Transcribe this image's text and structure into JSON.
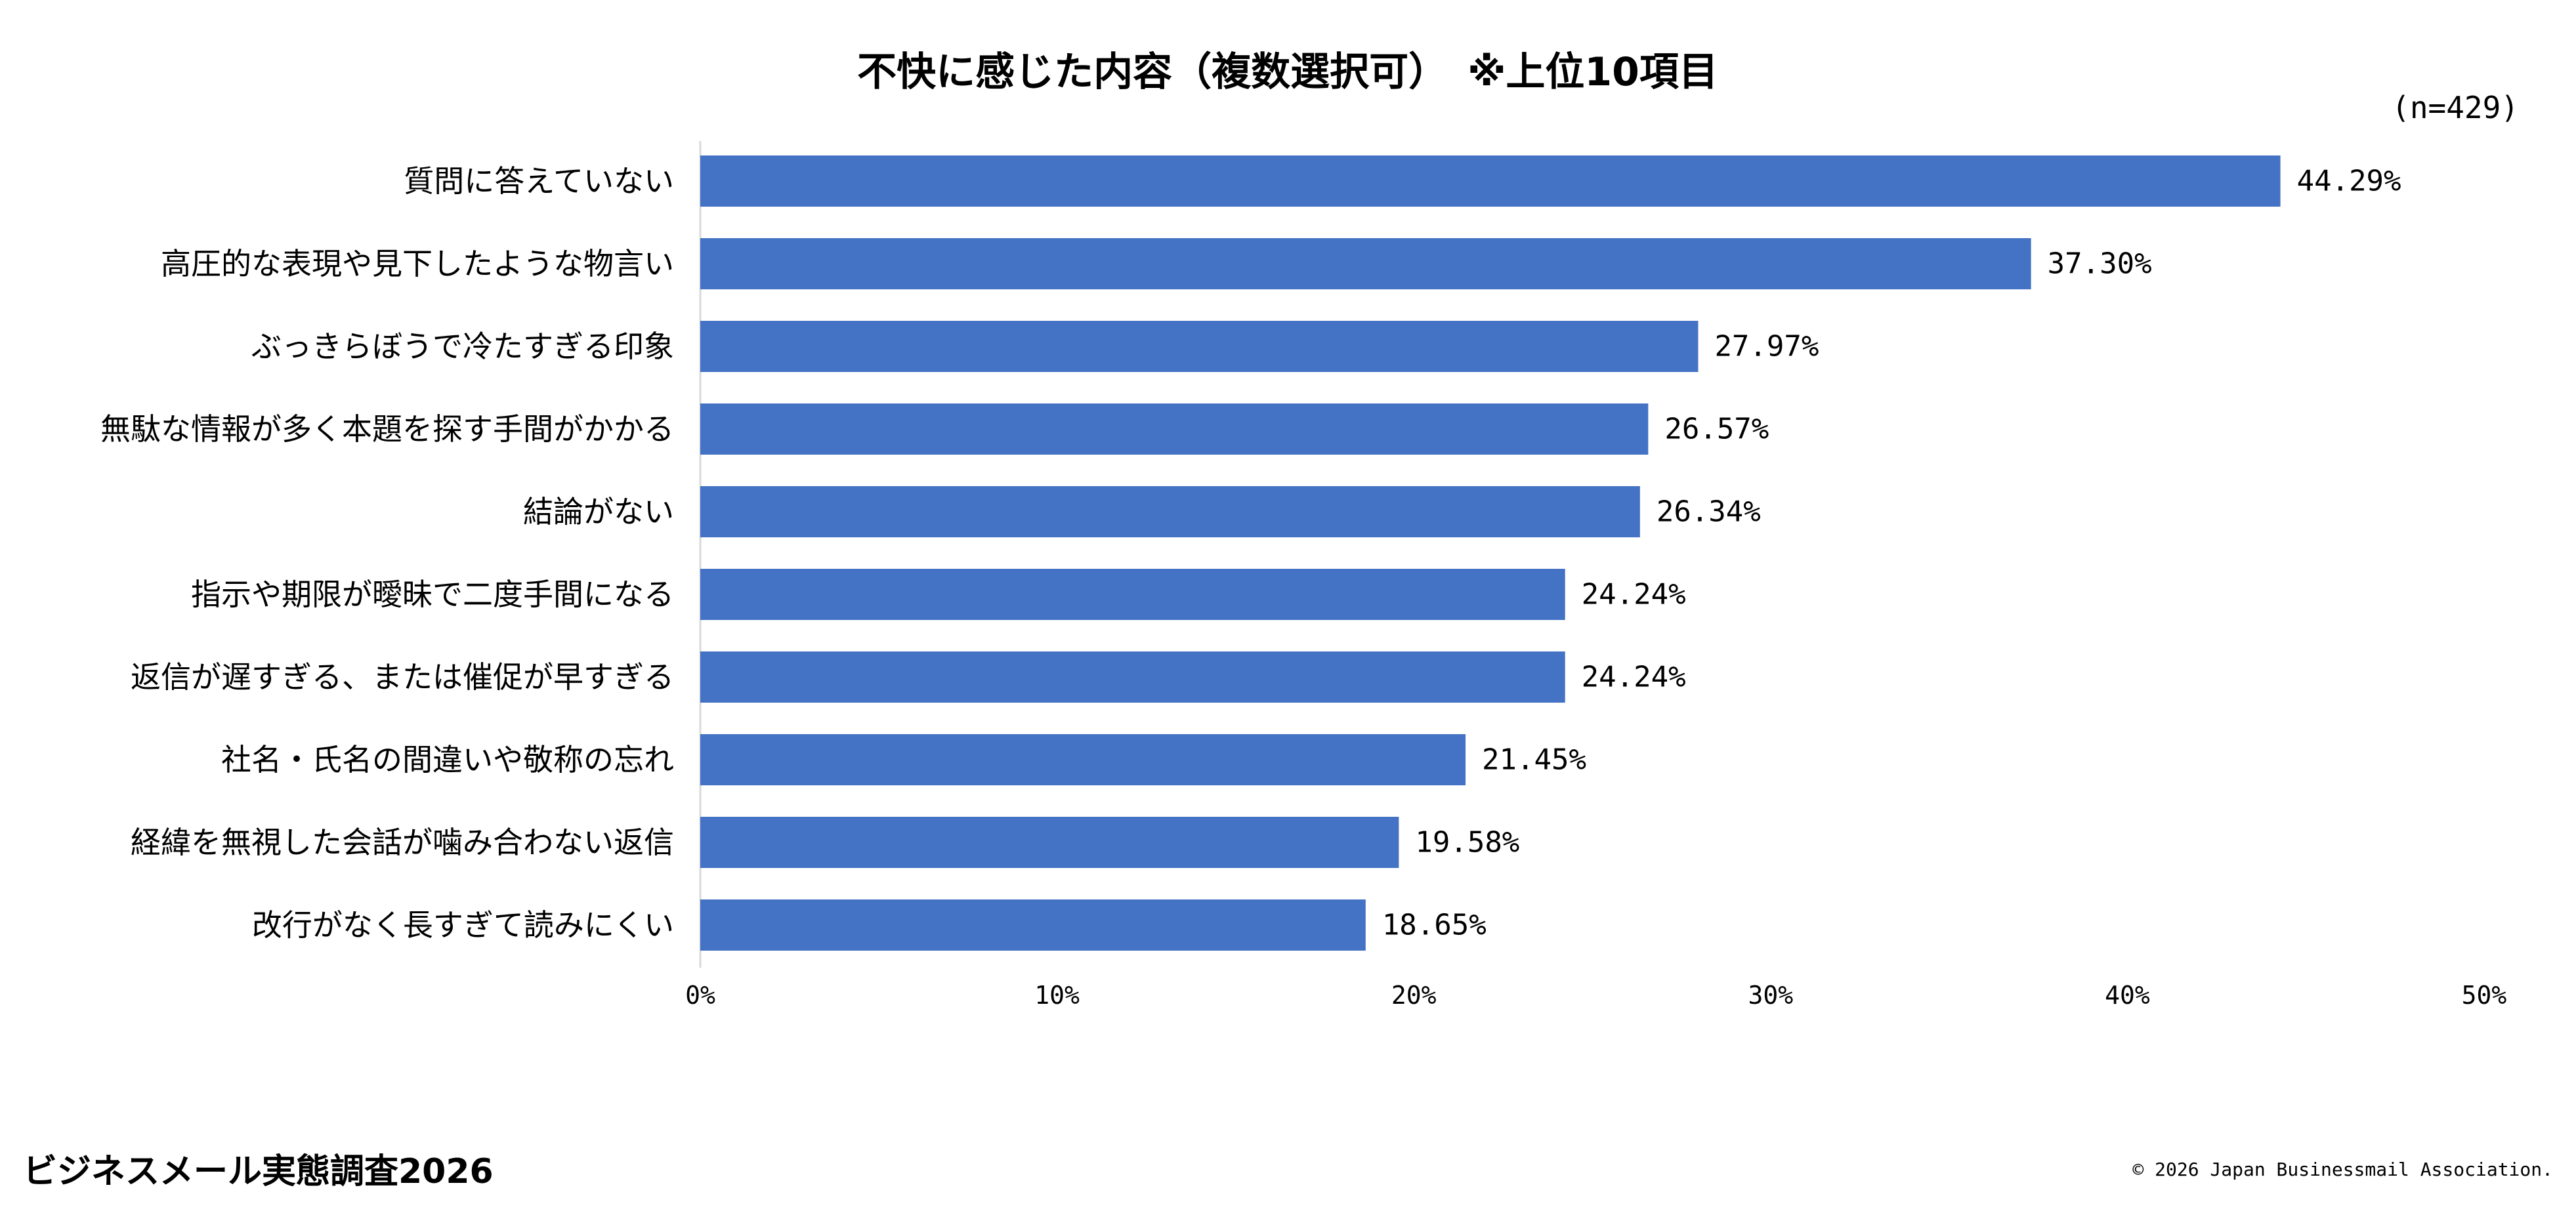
{
  "chart_data": {
    "type": "bar",
    "orientation": "horizontal",
    "title": "不快に感じた内容（複数選択可）　※上位10項目",
    "sample_note": "(n=429)",
    "categories": [
      "質問に答えていない",
      "高圧的な表現や見下したような物言い",
      "ぶっきらぼうで冷たすぎる印象",
      "無駄な情報が多く本題を探す手間がかかる",
      "結論がない",
      "指示や期限が曖昧で二度手間になる",
      "返信が遅すぎる、または催促が早すぎる",
      "社名・氏名の間違いや敬称の忘れ",
      "経緯を無視した会話が噛み合わない返信",
      "改行がなく長すぎて読みにくい"
    ],
    "values": [
      44.29,
      37.3,
      27.97,
      26.57,
      26.34,
      24.24,
      24.24,
      21.45,
      19.58,
      18.65
    ],
    "value_labels": [
      "44.29%",
      "37.30%",
      "27.97%",
      "26.57%",
      "26.34%",
      "24.24%",
      "24.24%",
      "21.45%",
      "19.58%",
      "18.65%"
    ],
    "xlim": [
      0,
      50
    ],
    "x_ticks": [
      0,
      10,
      20,
      30,
      40,
      50
    ],
    "x_tick_labels": [
      "0%",
      "10%",
      "20%",
      "30%",
      "40%",
      "50%"
    ],
    "bar_color": "#4472C4",
    "grid": false,
    "legend": "none"
  },
  "footer": {
    "left": "ビジネスメール実態調査2026",
    "right": "© 2026 Japan Businessmail Association."
  }
}
